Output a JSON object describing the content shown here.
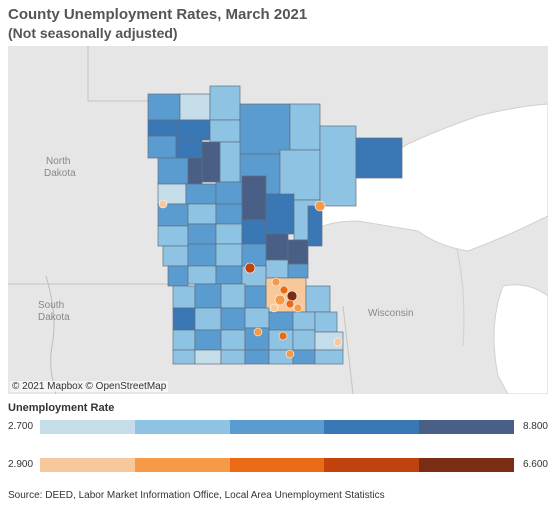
{
  "title": "County Unemployment Rates, March 2021",
  "subtitle": "(Not seasonally adjusted)",
  "map": {
    "attribution": "© 2021 Mapbox  © OpenStreetMap",
    "labels": {
      "north_dakota_1": "North",
      "north_dakota_2": "Dakota",
      "south_dakota_1": "South",
      "south_dakota_2": "Dakota",
      "wisconsin": "Wisconsin"
    }
  },
  "legend": {
    "title": "Unemployment Rate",
    "blue": {
      "min": "2.700",
      "max": "8.800",
      "colors": [
        "#c5dde8",
        "#8ec3e3",
        "#5a9bd0",
        "#3a77b5",
        "#4a5f86"
      ]
    },
    "orange": {
      "min": "2.900",
      "max": "6.600",
      "colors": [
        "#f7c89b",
        "#f79a48",
        "#ea6a16",
        "#c0420c",
        "#7a2d14"
      ]
    }
  },
  "source": "Source: DEED, Labor Market Information Office, Local Area Unemployment Statistics"
}
